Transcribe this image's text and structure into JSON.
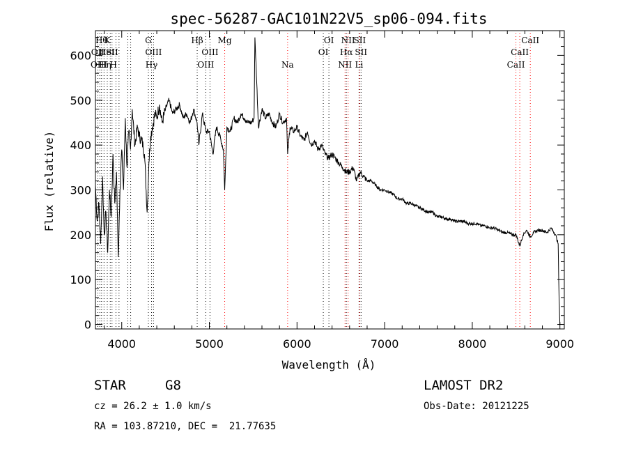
{
  "chart_data": {
    "type": "line",
    "title": "spec-56287-GAC101N22V5_sp06-094.fits",
    "xlabel": "Wavelength (Å)",
    "ylabel": "Flux (relative)",
    "xlim": [
      3700,
      9050
    ],
    "ylim": [
      -10,
      655
    ],
    "x_ticks": [
      4000,
      5000,
      6000,
      7000,
      8000,
      9000
    ],
    "x_tick_labels": [
      "4000",
      "5000",
      "6000",
      "7000",
      "8000",
      "9000"
    ],
    "y_ticks": [
      0,
      100,
      200,
      300,
      400,
      500,
      600
    ],
    "y_tick_labels": [
      "0",
      "100",
      "200",
      "300",
      "400",
      "500",
      "600"
    ],
    "grid": false,
    "series": [
      {
        "x": [
          3700,
          3720,
          3740,
          3760,
          3780,
          3800,
          3820,
          3840,
          3860,
          3880,
          3900,
          3920,
          3940,
          3960,
          3980,
          4000,
          4020,
          4040,
          4060,
          4080,
          4100,
          4120,
          4150,
          4180,
          4200,
          4230,
          4260,
          4290,
          4310,
          4330,
          4350,
          4380,
          4400,
          4430,
          4460,
          4500,
          4540,
          4580,
          4620,
          4660,
          4700,
          4740,
          4780,
          4820,
          4860,
          4880,
          4920,
          4960,
          5000,
          5040,
          5080,
          5120,
          5160,
          5175,
          5200,
          5240,
          5280,
          5320,
          5360,
          5400,
          5440,
          5480,
          5510,
          5520,
          5560,
          5600,
          5640,
          5680,
          5720,
          5760,
          5800,
          5840,
          5880,
          5893,
          5920,
          5960,
          6000,
          6040,
          6080,
          6120,
          6160,
          6200,
          6240,
          6280,
          6320,
          6360,
          6400,
          6440,
          6480,
          6520,
          6563,
          6600,
          6640,
          6680,
          6720,
          6760,
          6800,
          6850,
          6900,
          6950,
          7000,
          7050,
          7100,
          7150,
          7200,
          7250,
          7300,
          7350,
          7400,
          7450,
          7500,
          7550,
          7600,
          7650,
          7700,
          7750,
          7800,
          7850,
          7900,
          7950,
          8000,
          8050,
          8100,
          8150,
          8200,
          8250,
          8300,
          8350,
          8400,
          8450,
          8500,
          8542,
          8580,
          8620,
          8662,
          8700,
          8750,
          8800,
          8850,
          8900,
          8950,
          8980,
          8990,
          9000
        ],
        "y": [
          310,
          230,
          270,
          180,
          330,
          200,
          250,
          160,
          300,
          240,
          380,
          270,
          340,
          150,
          300,
          390,
          300,
          460,
          350,
          430,
          390,
          480,
          400,
          440,
          420,
          410,
          380,
          250,
          360,
          420,
          440,
          470,
          460,
          490,
          450,
          480,
          500,
          470,
          480,
          490,
          460,
          470,
          450,
          480,
          450,
          400,
          470,
          430,
          430,
          380,
          440,
          420,
          390,
          300,
          440,
          430,
          460,
          450,
          470,
          460,
          450,
          450,
          460,
          640,
          440,
          480,
          460,
          470,
          450,
          440,
          470,
          450,
          460,
          380,
          440,
          430,
          440,
          420,
          410,
          430,
          400,
          410,
          390,
          400,
          380,
          370,
          380,
          370,
          360,
          350,
          340,
          340,
          350,
          320,
          340,
          330,
          320,
          320,
          310,
          300,
          300,
          295,
          290,
          280,
          280,
          270,
          270,
          265,
          260,
          255,
          250,
          250,
          240,
          240,
          235,
          235,
          230,
          230,
          230,
          225,
          225,
          225,
          220,
          220,
          215,
          215,
          210,
          205,
          205,
          200,
          200,
          175,
          200,
          210,
          195,
          205,
          210,
          210,
          205,
          215,
          200,
          180,
          60,
          0
        ]
      }
    ],
    "line_labels": [
      {
        "x": 3770,
        "row": 1,
        "text": "Hθ"
      },
      {
        "x": 3835,
        "row": 1,
        "text": "K"
      },
      {
        "x": 3727,
        "row": 2,
        "text": "OII"
      },
      {
        "x": 3830,
        "row": 2,
        "text": "HeI"
      },
      {
        "x": 3890,
        "row": 2,
        "text": "SII"
      },
      {
        "x": 3740,
        "row": 3,
        "text": "OIII"
      },
      {
        "x": 3810,
        "row": 3,
        "text": "Hη"
      },
      {
        "x": 3905,
        "row": 3,
        "text": "H"
      },
      {
        "x": 4304,
        "row": 1,
        "text": "G"
      },
      {
        "x": 4363,
        "row": 2,
        "text": "OIII"
      },
      {
        "x": 4340,
        "row": 3,
        "text": "Hγ"
      },
      {
        "x": 4861,
        "row": 1,
        "text": "Hβ"
      },
      {
        "x": 5007,
        "row": 2,
        "text": "OIII"
      },
      {
        "x": 4959,
        "row": 3,
        "text": "OIII"
      },
      {
        "x": 5175,
        "row": 1,
        "text": "Mg"
      },
      {
        "x": 5893,
        "row": 3,
        "text": "Na"
      },
      {
        "x": 6364,
        "row": 1,
        "text": "OI"
      },
      {
        "x": 6300,
        "row": 2,
        "text": "OI"
      },
      {
        "x": 6583,
        "row": 1,
        "text": "NII"
      },
      {
        "x": 6716,
        "row": 1,
        "text": "SII"
      },
      {
        "x": 6563,
        "row": 2,
        "text": "Hα"
      },
      {
        "x": 6731,
        "row": 2,
        "text": "SII"
      },
      {
        "x": 6548,
        "row": 3,
        "text": "NII"
      },
      {
        "x": 6708,
        "row": 3,
        "text": "Li"
      },
      {
        "x": 8662,
        "row": 1,
        "text": "CaII"
      },
      {
        "x": 8542,
        "row": 2,
        "text": "CaII"
      },
      {
        "x": 8498,
        "row": 3,
        "text": "CaII"
      }
    ],
    "marker_lines": [
      {
        "x": 3727,
        "color": "#000000"
      },
      {
        "x": 3750,
        "color": "#000000"
      },
      {
        "x": 3770,
        "color": "#000000"
      },
      {
        "x": 3798,
        "color": "#000000"
      },
      {
        "x": 3835,
        "color": "#000000"
      },
      {
        "x": 3869,
        "color": "#000000"
      },
      {
        "x": 3889,
        "color": "#000000"
      },
      {
        "x": 3934,
        "color": "#000000"
      },
      {
        "x": 3969,
        "color": "#000000"
      },
      {
        "x": 4069,
        "color": "#000000"
      },
      {
        "x": 4102,
        "color": "#000000"
      },
      {
        "x": 4304,
        "color": "#000000"
      },
      {
        "x": 4340,
        "color": "#000000"
      },
      {
        "x": 4363,
        "color": "#000000"
      },
      {
        "x": 4861,
        "color": "#000000"
      },
      {
        "x": 4959,
        "color": "#000000"
      },
      {
        "x": 5007,
        "color": "#000000"
      },
      {
        "x": 5175,
        "color": "#ff0000"
      },
      {
        "x": 5893,
        "color": "#ff0000"
      },
      {
        "x": 6300,
        "color": "#000000"
      },
      {
        "x": 6364,
        "color": "#000000"
      },
      {
        "x": 6548,
        "color": "#ff0000"
      },
      {
        "x": 6563,
        "color": "#000000"
      },
      {
        "x": 6583,
        "color": "#ff0000"
      },
      {
        "x": 6708,
        "color": "#000000"
      },
      {
        "x": 6716,
        "color": "#ff0000"
      },
      {
        "x": 6731,
        "color": "#000000"
      },
      {
        "x": 8498,
        "color": "#ff0000"
      },
      {
        "x": 8542,
        "color": "#ff0000"
      },
      {
        "x": 8662,
        "color": "#ff0000"
      }
    ]
  },
  "info": {
    "class": "STAR",
    "subclass": "G8",
    "survey": "LAMOST DR2",
    "cz": "cz = 26.2 ± 1.0 km/s",
    "obs_date": "Obs-Date: 20121225",
    "coords": "RA = 103.87210, DEC =  21.77635"
  }
}
